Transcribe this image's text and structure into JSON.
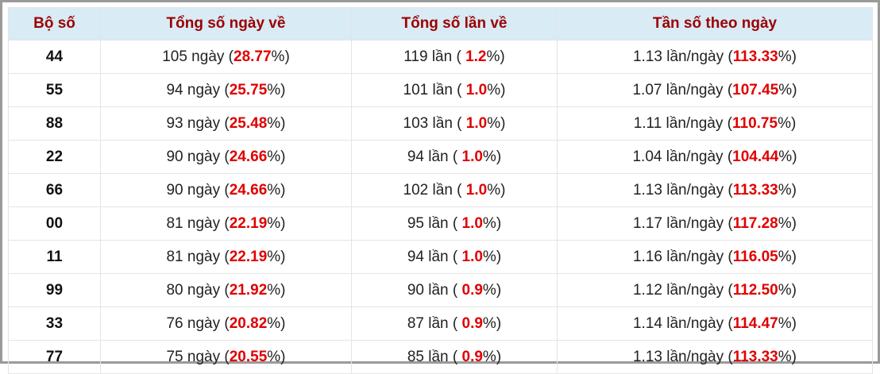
{
  "table": {
    "header": [
      "Bộ số",
      "Tổng số ngày về",
      "Tổng số lần về",
      "Tần số theo ngày"
    ],
    "rows": [
      [
        "44",
        [
          "105 ngày (",
          "28.77",
          "%)"
        ],
        [
          "119 lần ( ",
          "1.2",
          "%)"
        ],
        [
          "1.13 lần/ngày (",
          "113.33",
          "%)"
        ]
      ],
      [
        "55",
        [
          "94 ngày (",
          "25.75",
          "%)"
        ],
        [
          "101 lần ( ",
          "1.0",
          "%)"
        ],
        [
          "1.07 lần/ngày (",
          "107.45",
          "%)"
        ]
      ],
      [
        "88",
        [
          "93 ngày (",
          "25.48",
          "%)"
        ],
        [
          "103 lần ( ",
          "1.0",
          "%)"
        ],
        [
          "1.11 lần/ngày (",
          "110.75",
          "%)"
        ]
      ],
      [
        "22",
        [
          "90 ngày (",
          "24.66",
          "%)"
        ],
        [
          "94 lần ( ",
          "1.0",
          "%)"
        ],
        [
          "1.04 lần/ngày (",
          "104.44",
          "%)"
        ]
      ],
      [
        "66",
        [
          "90 ngày (",
          "24.66",
          "%)"
        ],
        [
          "102 lần ( ",
          "1.0",
          "%)"
        ],
        [
          "1.13 lần/ngày (",
          "113.33",
          "%)"
        ]
      ],
      [
        "00",
        [
          "81 ngày (",
          "22.19",
          "%)"
        ],
        [
          "95 lần ( ",
          "1.0",
          "%)"
        ],
        [
          "1.17 lần/ngày (",
          "117.28",
          "%)"
        ]
      ],
      [
        "11",
        [
          "81 ngày (",
          "22.19",
          "%)"
        ],
        [
          "94 lần ( ",
          "1.0",
          "%)"
        ],
        [
          "1.16 lần/ngày (",
          "116.05",
          "%)"
        ]
      ],
      [
        "99",
        [
          "80 ngày (",
          "21.92",
          "%)"
        ],
        [
          "90 lần ( ",
          "0.9",
          "%)"
        ],
        [
          "1.12 lần/ngày (",
          "112.50",
          "%)"
        ]
      ],
      [
        "33",
        [
          "76 ngày (",
          "20.82",
          "%)"
        ],
        [
          "87 lần ( ",
          "0.9",
          "%)"
        ],
        [
          "1.14 lần/ngày (",
          "114.47",
          "%)"
        ]
      ],
      [
        "77",
        [
          "75 ngày (",
          "20.55",
          "%)"
        ],
        [
          "85 lần ( ",
          "0.9",
          "%)"
        ],
        [
          "1.13 lần/ngày (",
          "113.33",
          "%)"
        ]
      ]
    ]
  }
}
